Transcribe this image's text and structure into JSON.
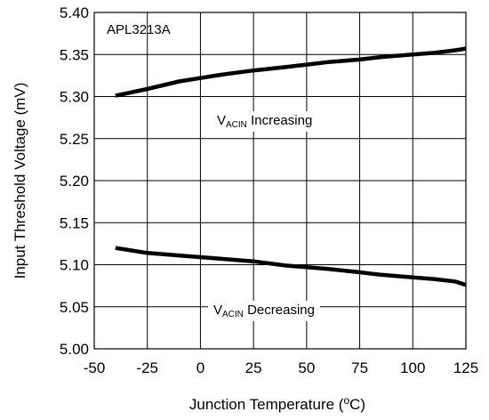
{
  "chart_data": {
    "type": "line",
    "title": "",
    "xlabel": "Junction Temperature",
    "xlabel_unit": "(oC)",
    "ylabel": "Input Threshold Voltage (mV)",
    "xlim": [
      -50,
      125
    ],
    "ylim": [
      5.0,
      5.4
    ],
    "xticks": [
      -50,
      -25,
      0,
      25,
      50,
      75,
      100,
      125
    ],
    "xtick_labels": [
      "-50",
      "-25",
      "0",
      "25",
      "50",
      "75",
      "100",
      "125"
    ],
    "yticks": [
      5.0,
      5.05,
      5.1,
      5.15,
      5.2,
      5.25,
      5.3,
      5.35,
      5.4
    ],
    "ytick_labels": [
      "5.00",
      "5.05",
      "5.10",
      "5.15",
      "5.20",
      "5.25",
      "5.30",
      "5.35",
      "5.40"
    ],
    "grid": true,
    "legend": "none",
    "annotations": [
      {
        "id": "device",
        "text": "APL3213A"
      },
      {
        "id": "inc",
        "main": "V",
        "sub": "ACIN",
        "rest": " Increasing"
      },
      {
        "id": "dec",
        "main": "V",
        "sub": "ACIN",
        "rest": " Decreasing"
      }
    ],
    "series": [
      {
        "id": "increasing",
        "x": [
          -40,
          -25,
          -10,
          0,
          10,
          25,
          40,
          50,
          60,
          75,
          85,
          100,
          110,
          120,
          125
        ],
        "y": [
          5.301,
          5.309,
          5.318,
          5.322,
          5.326,
          5.331,
          5.335,
          5.338,
          5.341,
          5.344,
          5.347,
          5.35,
          5.352,
          5.355,
          5.357
        ]
      },
      {
        "id": "decreasing",
        "x": [
          -40,
          -25,
          -10,
          0,
          10,
          25,
          40,
          50,
          60,
          75,
          85,
          100,
          110,
          120,
          125
        ],
        "y": [
          5.12,
          5.114,
          5.111,
          5.109,
          5.107,
          5.104,
          5.099,
          5.097,
          5.095,
          5.091,
          5.088,
          5.085,
          5.083,
          5.08,
          5.076
        ]
      }
    ]
  }
}
